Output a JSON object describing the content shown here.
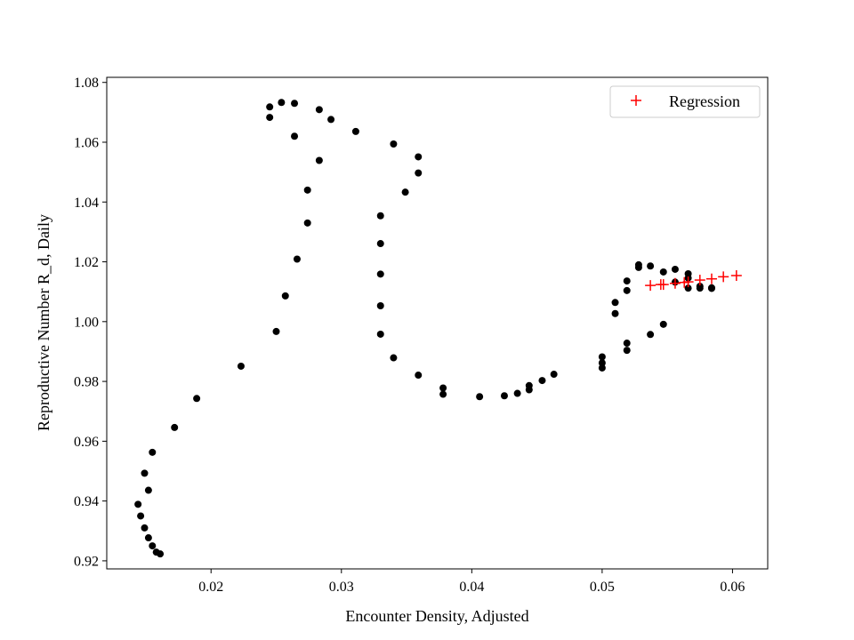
{
  "chart_data": {
    "type": "scatter",
    "xlabel": "Encounter Density, Adjusted",
    "ylabel": "Reproductive Number R_d, Daily",
    "xlim": [
      0.012,
      0.0627
    ],
    "ylim": [
      0.9173,
      1.0817
    ],
    "x_ticks": [
      0.02,
      0.03,
      0.04,
      0.05,
      0.06
    ],
    "x_tick_labels": [
      "0.02",
      "0.03",
      "0.04",
      "0.05",
      "0.06"
    ],
    "y_ticks": [
      0.92,
      0.94,
      0.96,
      0.98,
      1.0,
      1.02,
      1.04,
      1.06,
      1.08
    ],
    "y_tick_labels": [
      "0.92",
      "0.94",
      "0.96",
      "0.98",
      "1.00",
      "1.02",
      "1.04",
      "1.06",
      "1.08"
    ],
    "grid": false,
    "legend_position": "top-right",
    "series": [
      {
        "marker": "dot",
        "color": "#000000",
        "points": [
          [
            0.0161,
            0.9223
          ],
          [
            0.0158,
            0.9229
          ],
          [
            0.0155,
            0.925
          ],
          [
            0.0152,
            0.9277
          ],
          [
            0.0149,
            0.931
          ],
          [
            0.0146,
            0.935
          ],
          [
            0.0144,
            0.9389
          ],
          [
            0.0152,
            0.9436
          ],
          [
            0.0149,
            0.9493
          ],
          [
            0.0155,
            0.9563
          ],
          [
            0.0172,
            0.9646
          ],
          [
            0.0189,
            0.9743
          ],
          [
            0.0223,
            0.9851
          ],
          [
            0.025,
            0.9967
          ],
          [
            0.0257,
            1.0086
          ],
          [
            0.0266,
            1.0209
          ],
          [
            0.0274,
            1.033
          ],
          [
            0.0274,
            1.044
          ],
          [
            0.0283,
            1.0539
          ],
          [
            0.0264,
            1.062
          ],
          [
            0.0245,
            1.0683
          ],
          [
            0.0245,
            1.0718
          ],
          [
            0.0254,
            1.0733
          ],
          [
            0.0264,
            1.073
          ],
          [
            0.0283,
            1.0709
          ],
          [
            0.0292,
            1.0676
          ],
          [
            0.0311,
            1.0636
          ],
          [
            0.034,
            1.0594
          ],
          [
            0.0359,
            1.0551
          ],
          [
            0.0359,
            1.0497
          ],
          [
            0.0349,
            1.0433
          ],
          [
            0.033,
            1.0354
          ],
          [
            0.033,
            1.0261
          ],
          [
            0.033,
            1.0159
          ],
          [
            0.033,
            1.0053
          ],
          [
            0.033,
            0.9958
          ],
          [
            0.034,
            0.9879
          ],
          [
            0.0359,
            0.9821
          ],
          [
            0.0378,
            0.9778
          ],
          [
            0.0378,
            0.9757
          ],
          [
            0.0406,
            0.9749
          ],
          [
            0.0425,
            0.9752
          ],
          [
            0.0435,
            0.976
          ],
          [
            0.0444,
            0.9772
          ],
          [
            0.0444,
            0.9786
          ],
          [
            0.0454,
            0.9803
          ],
          [
            0.0463,
            0.9824
          ],
          [
            0.05,
            0.9845
          ],
          [
            0.05,
            0.9862
          ],
          [
            0.05,
            0.9882
          ],
          [
            0.0519,
            0.9904
          ],
          [
            0.0519,
            0.9928
          ],
          [
            0.051,
            1.0027
          ],
          [
            0.051,
            1.0064
          ],
          [
            0.0519,
            1.0104
          ],
          [
            0.0519,
            1.0136
          ],
          [
            0.0528,
            1.0181
          ],
          [
            0.0528,
            1.019
          ],
          [
            0.0537,
            1.0186
          ],
          [
            0.0556,
            1.0175
          ],
          [
            0.0547,
            1.0166
          ],
          [
            0.0566,
            1.016
          ],
          [
            0.0566,
            1.0146
          ],
          [
            0.0556,
            1.0132
          ],
          [
            0.0566,
            1.0112
          ],
          [
            0.0575,
            1.0112
          ],
          [
            0.0584,
            1.0111
          ],
          [
            0.0575,
            1.0118
          ],
          [
            0.0584,
            1.0113
          ],
          [
            0.0547,
            0.9991
          ],
          [
            0.0537,
            0.9957
          ]
        ]
      },
      {
        "name": "Regression",
        "marker": "plus",
        "color": "#ff0000",
        "points": [
          [
            0.0537,
            1.0121
          ],
          [
            0.0545,
            1.0124
          ],
          [
            0.0547,
            1.0124
          ],
          [
            0.0556,
            1.0128
          ],
          [
            0.0563,
            1.0131
          ],
          [
            0.0566,
            1.0133
          ],
          [
            0.0575,
            1.0139
          ],
          [
            0.0584,
            1.0143
          ],
          [
            0.0593,
            1.015
          ],
          [
            0.0603,
            1.0154
          ]
        ]
      }
    ]
  }
}
